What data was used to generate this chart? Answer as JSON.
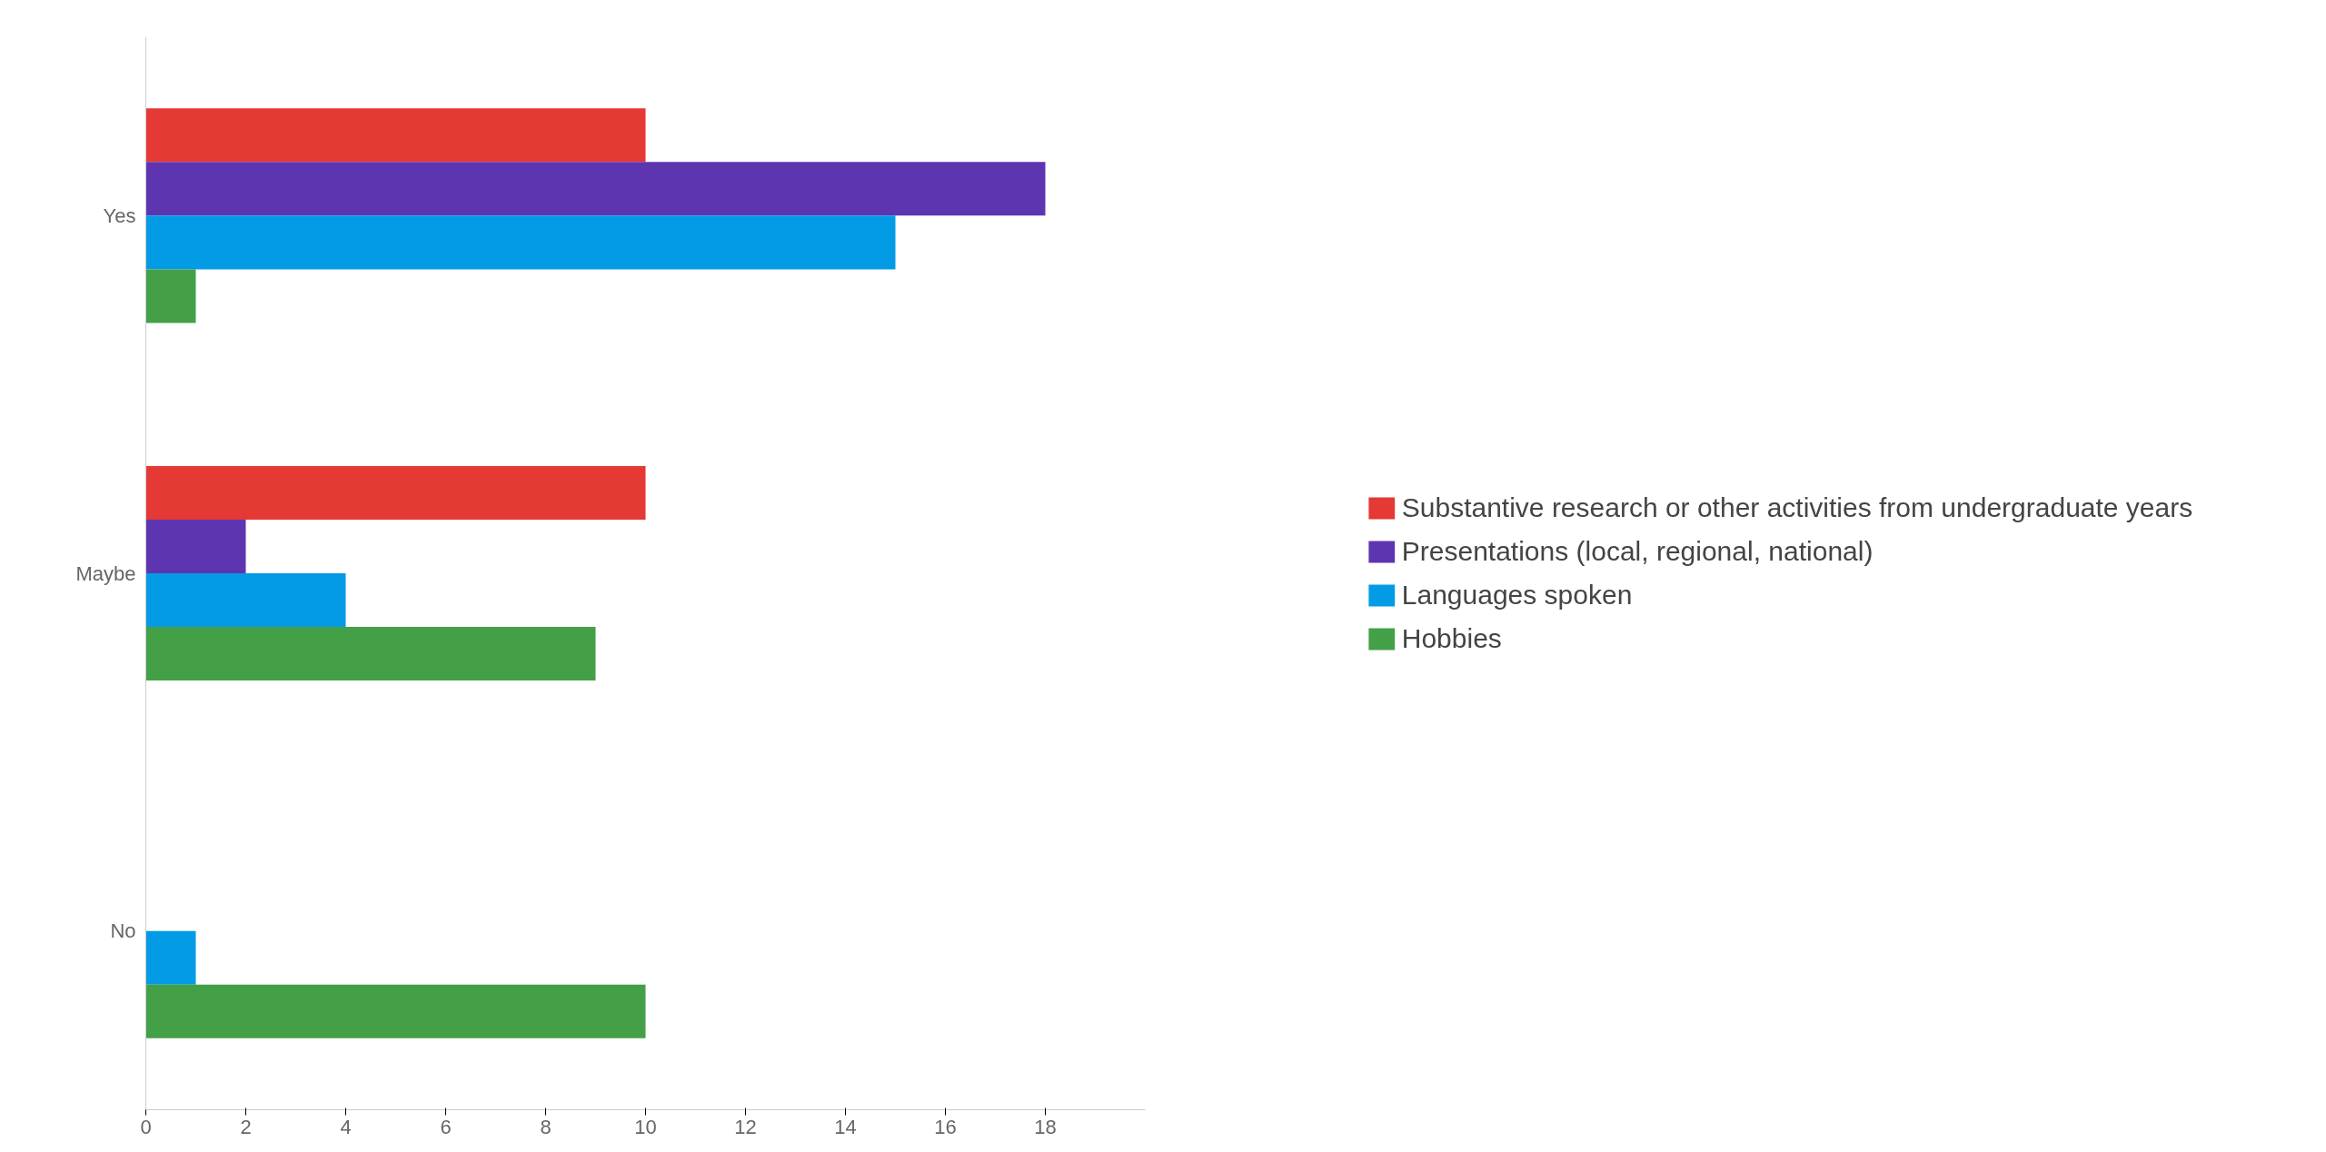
{
  "chart_data": {
    "type": "bar",
    "orientation": "horizontal",
    "categories": [
      "Yes",
      "Maybe",
      "No"
    ],
    "series": [
      {
        "name": "Substantive research or other activities from undergraduate years",
        "color": "#e53935",
        "values": [
          10,
          10,
          null
        ]
      },
      {
        "name": "Presentations (local, regional, national)",
        "color": "#5e35b1",
        "values": [
          18,
          2,
          null
        ]
      },
      {
        "name": "Languages spoken",
        "color": "#039be5",
        "values": [
          15,
          4,
          1
        ]
      },
      {
        "name": "Hobbies",
        "color": "#43a047",
        "values": [
          1,
          9,
          10
        ]
      }
    ],
    "xlim": [
      0,
      20
    ],
    "xticks": [
      0,
      2,
      4,
      6,
      8,
      10,
      12,
      14,
      16,
      18
    ],
    "grid": false,
    "legend": "right"
  }
}
